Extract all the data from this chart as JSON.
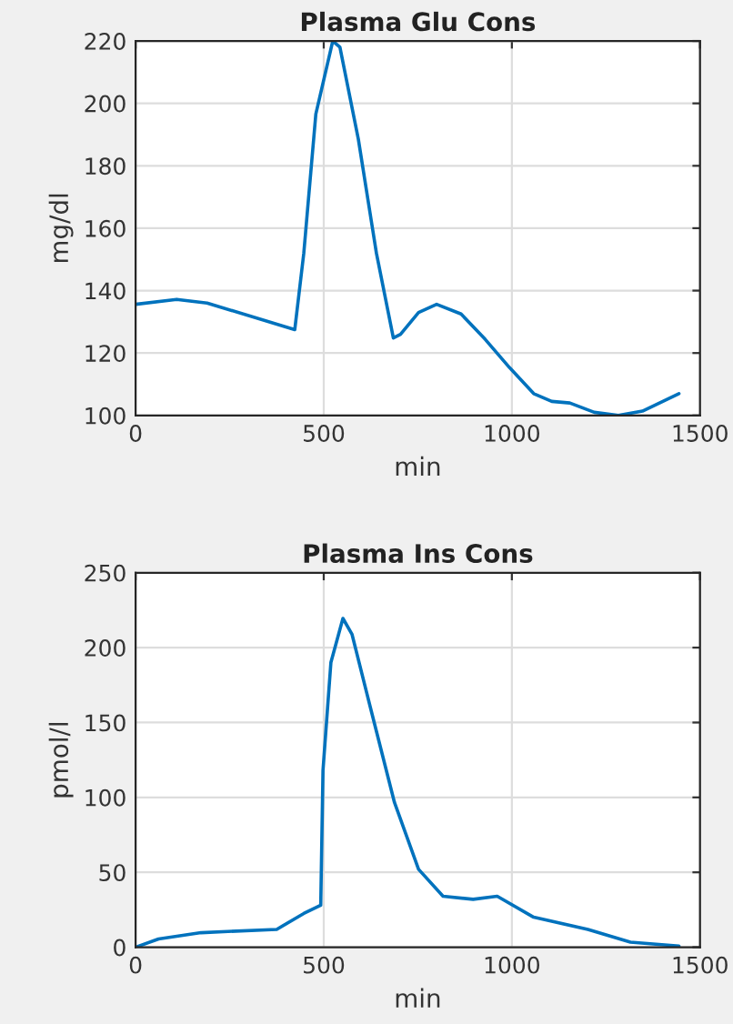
{
  "chart_data": [
    {
      "type": "line",
      "title": "Plasma Glu Cons",
      "xlabel": "min",
      "ylabel": "mg/dl",
      "xlim": [
        0,
        1500
      ],
      "xticks": [
        0,
        500,
        1000,
        1500
      ],
      "ylim": [
        100,
        220
      ],
      "yticks": [
        100,
        120,
        140,
        160,
        180,
        200,
        220
      ],
      "grid": true,
      "legend": false,
      "series": [
        {
          "color": "#0072bd",
          "x": [
            0,
            109,
            190,
            423,
            447,
            479,
            524,
            543,
            592,
            640,
            685,
            704,
            752,
            800,
            865,
            929,
            994,
            1058,
            1106,
            1154,
            1219,
            1283,
            1347,
            1444
          ],
          "values": [
            135.6,
            137.2,
            136,
            127.5,
            152,
            196.6,
            220,
            218,
            188.5,
            152,
            124.8,
            126,
            133,
            135.6,
            132.5,
            124.4,
            115.3,
            107,
            104.5,
            104,
            101,
            100,
            101.4,
            107
          ]
        }
      ]
    },
    {
      "type": "line",
      "title": "Plasma Ins Cons",
      "xlabel": "min",
      "ylabel": "pmol/l",
      "xlim": [
        0,
        1500
      ],
      "xticks": [
        0,
        500,
        1000,
        1500
      ],
      "ylim": [
        0,
        250
      ],
      "yticks": [
        0,
        50,
        100,
        150,
        200,
        250
      ],
      "grid": true,
      "legend": false,
      "series": [
        {
          "color": "#0072bd",
          "x": [
            0,
            61,
            174,
            375,
            447,
            492,
            498,
            519,
            551,
            575,
            624,
            688,
            752,
            817,
            897,
            961,
            1058,
            1202,
            1315,
            1444
          ],
          "values": [
            0,
            5.5,
            9.7,
            11.9,
            22.5,
            28,
            118,
            190,
            219.5,
            209,
            160,
            96.6,
            52,
            34,
            32,
            34,
            20,
            11.9,
            3.4,
            0.8
          ]
        }
      ]
    }
  ]
}
